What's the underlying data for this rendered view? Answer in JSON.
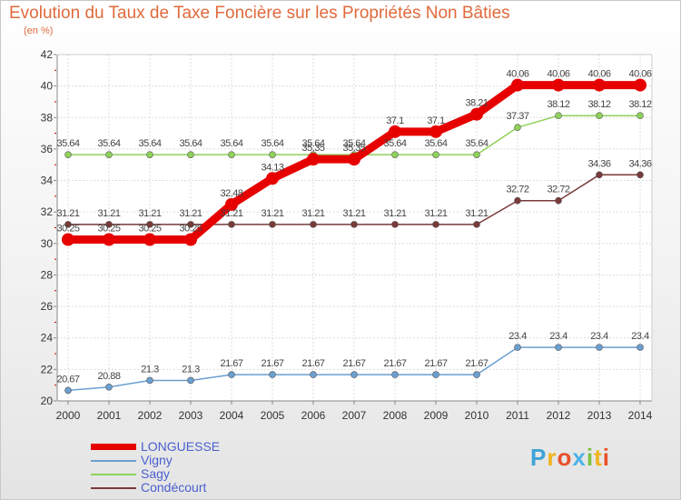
{
  "header": {
    "title": "Evolution du Taux de Taxe Foncière sur les Propriétés Non Bâties",
    "unit": "(en %)"
  },
  "brand": {
    "letters": [
      "P",
      "r",
      "o",
      "x",
      "i",
      "t",
      "i"
    ],
    "colors": [
      "#3fa3d8",
      "#f0b41e",
      "#e8502a",
      "#4db3e6",
      "#7cc242",
      "#f0b41e",
      "#e8502a"
    ]
  },
  "chart_data": {
    "type": "line",
    "title": "Evolution du Taux de Taxe Foncière sur les Propriétés Non Bâties",
    "ylabel": "(en %)",
    "xlabel": "",
    "ylim": [
      20,
      42
    ],
    "yticks": [
      20,
      22,
      24,
      26,
      28,
      30,
      32,
      34,
      36,
      38,
      40,
      42
    ],
    "grid": true,
    "categories": [
      "2000",
      "2001",
      "2002",
      "2003",
      "2004",
      "2005",
      "2006",
      "2007",
      "2008",
      "2009",
      "2010",
      "2011",
      "2012",
      "2013",
      "2014"
    ],
    "series": [
      {
        "name": "LONGUESSE",
        "color": "#e60000",
        "values": [
          30.25,
          30.25,
          30.25,
          30.25,
          32.48,
          34.13,
          35.35,
          35.35,
          37.1,
          37.1,
          38.21,
          40.06,
          40.06,
          40.06,
          40.06
        ],
        "labels": [
          "30.25",
          "30.25",
          "30.25",
          "30.25",
          "32.48",
          "34.13",
          "35.35",
          "35.35",
          "37.1",
          "37.1",
          "38.21",
          "40.06",
          "40.06",
          "40.06",
          "40.06"
        ]
      },
      {
        "name": "Vigny",
        "color": "#6b9fcf",
        "values": [
          20.67,
          20.88,
          21.3,
          21.3,
          21.67,
          21.67,
          21.67,
          21.67,
          21.67,
          21.67,
          21.67,
          23.4,
          23.4,
          23.4,
          23.4
        ],
        "labels": [
          "20.67",
          "20.88",
          "21.3",
          "21.3",
          "21.67",
          "21.67",
          "21.67",
          "21.67",
          "21.67",
          "21.67",
          "21.67",
          "23.4",
          "23.4",
          "23.4",
          "23.4"
        ]
      },
      {
        "name": "Sagy",
        "color": "#8fd15a",
        "values": [
          35.64,
          35.64,
          35.64,
          35.64,
          35.64,
          35.64,
          35.64,
          35.64,
          35.64,
          35.64,
          35.64,
          37.37,
          38.12,
          38.12,
          38.12
        ],
        "labels": [
          "35.64",
          "35.64",
          "35.64",
          "35.64",
          "35.64",
          "35.64",
          "35.64",
          "35.64",
          "35.64",
          "35.64",
          "35.64",
          "37.37",
          "38.12",
          "38.12",
          "38.12"
        ]
      },
      {
        "name": "Condécourt",
        "color": "#7a3a3a",
        "values": [
          31.21,
          31.21,
          31.21,
          31.21,
          31.21,
          31.21,
          31.21,
          31.21,
          31.21,
          31.21,
          31.21,
          32.72,
          32.72,
          34.36,
          34.36
        ],
        "labels": [
          "31.21",
          "31.21",
          "31.21",
          "31.21",
          "31.21",
          "31.21",
          "31.21",
          "31.21",
          "31.21",
          "31.21",
          "31.21",
          "32.72",
          "32.72",
          "34.36",
          "34.36"
        ]
      }
    ]
  }
}
